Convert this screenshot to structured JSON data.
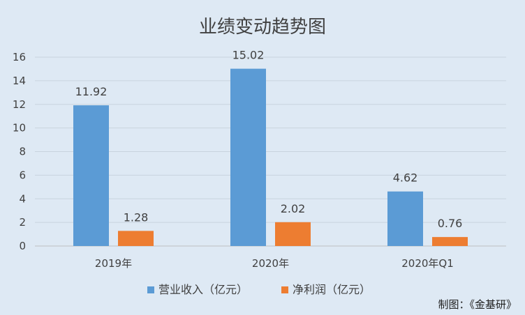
{
  "chart_data": {
    "type": "bar",
    "title": "业绩变动趋势图",
    "categories": [
      "2019年",
      "2020年",
      "2020年Q1"
    ],
    "series": [
      {
        "name": "营业收入（亿元）",
        "values": [
          11.92,
          15.02,
          4.62
        ],
        "color": "#5b9bd5"
      },
      {
        "name": "净利润（亿元）",
        "values": [
          1.28,
          2.02,
          0.76
        ],
        "color": "#ed7d31"
      }
    ],
    "yticks": [
      0,
      2,
      4,
      6,
      8,
      10,
      12,
      14,
      16
    ],
    "ylim": [
      0,
      16
    ],
    "grid": true,
    "legend_position": "bottom",
    "data_labels": [
      "11.92",
      "15.02",
      "4.62",
      "1.28",
      "2.02",
      "0.76"
    ]
  },
  "credit": "制图：《金基研》",
  "colors": {
    "background": "#dee9f4",
    "grid": "#c8d3de",
    "text": "#404040"
  }
}
